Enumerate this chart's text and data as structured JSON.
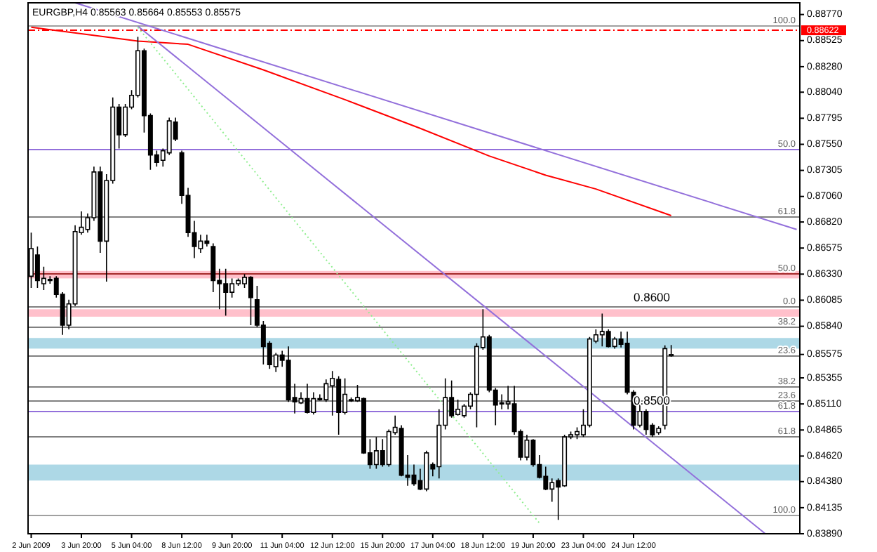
{
  "chart_data": {
    "type": "candlestick",
    "title": "EURGBP,H4  0.85563 0.85664 0.85553 0.85575",
    "categories": [
      "2 Jun 2009",
      null,
      null,
      null,
      null,
      null,
      null,
      null,
      "3 Jun 20:00",
      null,
      null,
      null,
      null,
      null,
      null,
      null,
      "5 Jun 04:00",
      null,
      null,
      null,
      null,
      null,
      null,
      null,
      "8 Jun 12:00",
      null,
      null,
      null,
      null,
      null,
      null,
      null,
      "9 Jun 20:00",
      null,
      null,
      null,
      null,
      null,
      null,
      null,
      "11 Jun 04:00",
      null,
      null,
      null,
      null,
      null,
      null,
      null,
      "12 Jun 12:00",
      null,
      null,
      null,
      null,
      null,
      null,
      null,
      "15 Jun 20:00",
      null,
      null,
      null,
      null,
      null,
      null,
      null,
      "17 Jun 04:00",
      null,
      null,
      null,
      null,
      null,
      null,
      null,
      "18 Jun 12:00",
      null,
      null,
      null,
      null,
      null,
      null,
      null,
      "19 Jun 20:00",
      null,
      null,
      null,
      null,
      null,
      null,
      null,
      "23 Jun 04:00",
      null,
      null,
      null,
      null,
      null,
      null,
      null,
      "24 Jun 12:00",
      null,
      null,
      null,
      null,
      null,
      null,
      null,
      null,
      null,
      null,
      null,
      null,
      null,
      null,
      null,
      null,
      null,
      null,
      null,
      null,
      null,
      null,
      null,
      null,
      null,
      null
    ],
    "ohlc": [
      [
        0.8631,
        0.8672,
        0.862,
        0.8657
      ],
      [
        0.8651,
        0.8659,
        0.862,
        0.8627
      ],
      [
        0.8624,
        0.864,
        0.8618,
        0.8629
      ],
      [
        0.8628,
        0.8631,
        0.8624,
        0.8627
      ],
      [
        0.8629,
        0.8631,
        0.8611,
        0.8614
      ],
      [
        0.8614,
        0.8616,
        0.8576,
        0.8585
      ],
      [
        0.8585,
        0.8609,
        0.8581,
        0.8605
      ],
      [
        0.8605,
        0.8679,
        0.8603,
        0.8673
      ],
      [
        0.8672,
        0.8692,
        0.867,
        0.8677
      ],
      [
        0.8675,
        0.869,
        0.8672,
        0.8686
      ],
      [
        0.8686,
        0.8734,
        0.8683,
        0.8729
      ],
      [
        0.8729,
        0.8734,
        0.8653,
        0.8664
      ],
      [
        0.8664,
        0.8727,
        0.8626,
        0.8721
      ],
      [
        0.8721,
        0.8799,
        0.8718,
        0.879
      ],
      [
        0.879,
        0.8793,
        0.8751,
        0.8764
      ],
      [
        0.8764,
        0.8793,
        0.8762,
        0.879
      ],
      [
        0.879,
        0.8806,
        0.8788,
        0.8801
      ],
      [
        0.8801,
        0.8856,
        0.8799,
        0.8843
      ],
      [
        0.8843,
        0.8845,
        0.8766,
        0.8782
      ],
      [
        0.8782,
        0.8784,
        0.8731,
        0.8745
      ],
      [
        0.8745,
        0.8749,
        0.8734,
        0.8738
      ],
      [
        0.874,
        0.8751,
        0.8734,
        0.8749
      ],
      [
        0.8747,
        0.878,
        0.8745,
        0.8777
      ],
      [
        0.8776,
        0.878,
        0.8758,
        0.876
      ],
      [
        0.8747,
        0.8749,
        0.8699,
        0.8707
      ],
      [
        0.8707,
        0.8714,
        0.8668,
        0.8672
      ],
      [
        0.8672,
        0.8683,
        0.8648,
        0.8659
      ],
      [
        0.8657,
        0.867,
        0.8653,
        0.8664
      ],
      [
        0.8664,
        0.867,
        0.8659,
        0.8662
      ],
      [
        0.8659,
        0.8662,
        0.8616,
        0.8627
      ],
      [
        0.8627,
        0.8638,
        0.86,
        0.8624
      ],
      [
        0.8624,
        0.8638,
        0.8594,
        0.8616
      ],
      [
        0.8616,
        0.8629,
        0.8611,
        0.8624
      ],
      [
        0.8624,
        0.8629,
        0.8622,
        0.8627
      ],
      [
        0.8624,
        0.8633,
        0.862,
        0.863
      ],
      [
        0.863,
        0.8631,
        0.8585,
        0.8611
      ],
      [
        0.8609,
        0.8622,
        0.8583,
        0.8585
      ],
      [
        0.8585,
        0.8589,
        0.8548,
        0.8565
      ],
      [
        0.8568,
        0.857,
        0.8544,
        0.8548
      ],
      [
        0.8546,
        0.8559,
        0.8541,
        0.8557
      ],
      [
        0.8557,
        0.8561,
        0.8546,
        0.8552
      ],
      [
        0.8552,
        0.8565,
        0.8513,
        0.8515
      ],
      [
        0.8517,
        0.853,
        0.8502,
        0.8513
      ],
      [
        0.8512,
        0.8522,
        0.8511,
        0.8516
      ],
      [
        0.8516,
        0.853,
        0.8502,
        0.8503
      ],
      [
        0.8503,
        0.8522,
        0.8501,
        0.8516
      ],
      [
        0.8515,
        0.852,
        0.8514,
        0.8516
      ],
      [
        0.8515,
        0.8534,
        0.8513,
        0.853
      ],
      [
        0.8528,
        0.8542,
        0.85,
        0.8535
      ],
      [
        0.8534,
        0.8537,
        0.8482,
        0.8503
      ],
      [
        0.8503,
        0.8535,
        0.8501,
        0.852
      ],
      [
        0.8514,
        0.8517,
        0.8513,
        0.8515
      ],
      [
        0.8514,
        0.8529,
        0.8513,
        0.8517
      ],
      [
        0.8516,
        0.8517,
        0.8464,
        0.8465
      ],
      [
        0.8465,
        0.8478,
        0.845,
        0.8454
      ],
      [
        0.8454,
        0.848,
        0.845,
        0.8467
      ],
      [
        0.8467,
        0.8478,
        0.8452,
        0.8454
      ],
      [
        0.8454,
        0.8487,
        0.8452,
        0.8485
      ],
      [
        0.8484,
        0.85,
        0.8482,
        0.8489
      ],
      [
        0.8488,
        0.8491,
        0.8443,
        0.8444
      ],
      [
        0.8444,
        0.8463,
        0.8434,
        0.8442
      ],
      [
        0.8444,
        0.8454,
        0.8434,
        0.8436
      ],
      [
        0.8439,
        0.845,
        0.843,
        0.8431
      ],
      [
        0.8431,
        0.8467,
        0.8429,
        0.8465
      ],
      [
        0.8454,
        0.8456,
        0.8443,
        0.845
      ],
      [
        0.8452,
        0.8506,
        0.8441,
        0.8491
      ],
      [
        0.8491,
        0.8535,
        0.8487,
        0.8517
      ],
      [
        0.8517,
        0.8533,
        0.8498,
        0.85
      ],
      [
        0.8501,
        0.8515,
        0.85,
        0.8506
      ],
      [
        0.85,
        0.8511,
        0.8498,
        0.8509
      ],
      [
        0.8509,
        0.8522,
        0.8506,
        0.852
      ],
      [
        0.852,
        0.8568,
        0.8489,
        0.8565
      ],
      [
        0.8564,
        0.86,
        0.8562,
        0.8574
      ],
      [
        0.8574,
        0.8576,
        0.8522,
        0.8524
      ],
      [
        0.8524,
        0.8526,
        0.8491,
        0.851
      ],
      [
        0.8511,
        0.852,
        0.8506,
        0.8512
      ],
      [
        0.8511,
        0.8528,
        0.8506,
        0.8513
      ],
      [
        0.8511,
        0.8528,
        0.8482,
        0.8485
      ],
      [
        0.8485,
        0.8487,
        0.8458,
        0.8461
      ],
      [
        0.8461,
        0.8482,
        0.8458,
        0.8477
      ],
      [
        0.8477,
        0.8478,
        0.8452,
        0.8454
      ],
      [
        0.8454,
        0.8463,
        0.8441,
        0.8442
      ],
      [
        0.8443,
        0.8452,
        0.843,
        0.8431
      ],
      [
        0.8431,
        0.8441,
        0.8419,
        0.8437
      ],
      [
        0.8439,
        0.8441,
        0.8402,
        0.8433
      ],
      [
        0.8434,
        0.8482,
        0.8433,
        0.848
      ],
      [
        0.848,
        0.8485,
        0.8478,
        0.8482
      ],
      [
        0.8482,
        0.8489,
        0.8478,
        0.8485
      ],
      [
        0.8482,
        0.8506,
        0.848,
        0.8491
      ],
      [
        0.8491,
        0.8574,
        0.8489,
        0.8572
      ],
      [
        0.857,
        0.8581,
        0.8568,
        0.8576
      ],
      [
        0.8576,
        0.8596,
        0.8565,
        0.8579
      ],
      [
        0.8579,
        0.8581,
        0.8564,
        0.8565
      ],
      [
        0.8565,
        0.8574,
        0.8563,
        0.8572
      ],
      [
        0.8572,
        0.8579,
        0.8564,
        0.8567
      ],
      [
        0.8568,
        0.8579,
        0.852,
        0.8522
      ],
      [
        0.8522,
        0.8524,
        0.8487,
        0.8491
      ],
      [
        0.8491,
        0.8516,
        0.8489,
        0.8504
      ],
      [
        0.8504,
        0.8506,
        0.8482,
        0.8487
      ],
      [
        0.8491,
        0.8493,
        0.848,
        0.8482
      ],
      [
        0.8484,
        0.849,
        0.8482,
        0.8488
      ],
      [
        0.8491,
        0.8566,
        0.8487,
        0.8563
      ],
      [
        0.85563,
        0.85664,
        0.85553,
        0.85575
      ],
      null,
      null,
      null,
      null,
      null,
      null,
      null,
      null,
      null,
      null,
      null,
      null,
      null,
      null,
      null,
      null,
      null,
      null,
      null,
      null
    ],
    "ylim": [
      0.8389,
      0.8888
    ],
    "yticks": [
      {
        "value": 0.8877,
        "label": "0.88770"
      },
      {
        "value": 0.88525,
        "label": "0.88525"
      },
      {
        "value": 0.8828,
        "label": "0.88280"
      },
      {
        "value": 0.8804,
        "label": "0.88040"
      },
      {
        "value": 0.87795,
        "label": "0.87795"
      },
      {
        "value": 0.8755,
        "label": "0.87550"
      },
      {
        "value": 0.87305,
        "label": "0.87305"
      },
      {
        "value": 0.8706,
        "label": "0.87060"
      },
      {
        "value": 0.8682,
        "label": "0.86820"
      },
      {
        "value": 0.86575,
        "label": "0.86575"
      },
      {
        "value": 0.8633,
        "label": "0.86330"
      },
      {
        "value": 0.86085,
        "label": "0.86085"
      },
      {
        "value": 0.8584,
        "label": "0.85840"
      },
      {
        "value": 0.85575,
        "label": "0.85575"
      },
      {
        "value": 0.85355,
        "label": "0.85355"
      },
      {
        "value": 0.8511,
        "label": "0.85110"
      },
      {
        "value": 0.84865,
        "label": "0.84865"
      },
      {
        "value": 0.8462,
        "label": "0.84620"
      },
      {
        "value": 0.8438,
        "label": "0.84380"
      },
      {
        "value": 0.84135,
        "label": "0.84135"
      },
      {
        "value": 0.8389,
        "label": "0.83890"
      }
    ],
    "series": [
      {
        "type": "line",
        "color": "#ff0000",
        "values": [
          0.8865,
          null,
          null,
          null,
          null,
          null,
          null,
          null,
          null,
          null,
          null,
          null,
          null,
          null,
          null,
          null,
          null,
          0.8852,
          null,
          null,
          null,
          null,
          null,
          null,
          null,
          0.8849,
          null,
          null,
          null,
          null,
          null,
          null,
          null,
          null,
          null,
          null,
          null,
          0.8825,
          null,
          null,
          null,
          null,
          null,
          null,
          null,
          null,
          null,
          null,
          null,
          null,
          0.8797,
          null,
          null,
          null,
          null,
          null,
          null,
          null,
          null,
          null,
          null,
          null,
          0.877,
          null,
          null,
          null,
          null,
          null,
          null,
          null,
          null,
          null,
          null,
          0.8744,
          null,
          null,
          null,
          null,
          null,
          null,
          null,
          null,
          0.8726,
          null,
          null,
          null,
          null,
          null,
          null,
          null,
          0.8713,
          null,
          null,
          null,
          null,
          null,
          null,
          null,
          null,
          null,
          null,
          null,
          0.8688,
          null,
          null,
          null,
          null,
          null,
          null,
          null,
          null,
          null,
          null,
          null,
          null,
          null,
          null,
          null,
          null,
          null,
          null,
          null,
          null
        ]
      },
      {
        "type": "line",
        "color": "#9370db",
        "values": [
          null,
          null,
          null,
          null,
          null,
          null,
          null,
          0.8888,
          null,
          null,
          null,
          null,
          null,
          null,
          null,
          null,
          null,
          null,
          null,
          null,
          null,
          null,
          null,
          null,
          null,
          null,
          null,
          null,
          null,
          null,
          null,
          null,
          null,
          null,
          null,
          null,
          null,
          null,
          null,
          null,
          null,
          null,
          null,
          null,
          null,
          null,
          null,
          null,
          null,
          null,
          null,
          null,
          null,
          null,
          null,
          null,
          null,
          null,
          null,
          null,
          null,
          null,
          null,
          null,
          null,
          null,
          null,
          null,
          null,
          null,
          null,
          null,
          null,
          null,
          null,
          null,
          null,
          null,
          null,
          null,
          null,
          null,
          null,
          null,
          null,
          null,
          null,
          null,
          null,
          null,
          null,
          null,
          null,
          null,
          null,
          null,
          null,
          null,
          null,
          null,
          null,
          null,
          null,
          null,
          null,
          null,
          null,
          null,
          null,
          null,
          null,
          null,
          null,
          null,
          null,
          null,
          null,
          null,
          null,
          null,
          null,
          null,
          0.8675
        ]
      },
      {
        "type": "line",
        "color": "#9370db",
        "values": [
          null,
          null,
          null,
          null,
          null,
          null,
          null,
          null,
          null,
          null,
          null,
          null,
          null,
          null,
          null,
          null,
          null,
          0.8866,
          null,
          null,
          null,
          null,
          null,
          null,
          null,
          null,
          null,
          null,
          null,
          null,
          null,
          null,
          null,
          null,
          null,
          null,
          null,
          null,
          null,
          null,
          null,
          null,
          null,
          null,
          null,
          null,
          null,
          null,
          null,
          null,
          null,
          null,
          null,
          null,
          null,
          null,
          null,
          null,
          null,
          null,
          null,
          null,
          null,
          null,
          null,
          null,
          null,
          null,
          null,
          null,
          null,
          null,
          null,
          null,
          null,
          null,
          null,
          null,
          null,
          null,
          null,
          null,
          null,
          null,
          null,
          null,
          null,
          null,
          null,
          null,
          null,
          null,
          null,
          null,
          null,
          null,
          null,
          null,
          null,
          null,
          null,
          null,
          null,
          null,
          null,
          null,
          null,
          null,
          null,
          null,
          null,
          null,
          null,
          null,
          null,
          null,
          null,
          0.8389,
          null,
          null,
          null,
          null,
          null
        ]
      },
      {
        "type": "line",
        "color": "#90ee90",
        "line_style": "dotted",
        "values": [
          null,
          null,
          null,
          null,
          null,
          null,
          null,
          null,
          null,
          null,
          null,
          null,
          null,
          null,
          null,
          null,
          null,
          0.8865,
          null,
          null,
          null,
          null,
          null,
          null,
          null,
          null,
          null,
          null,
          null,
          null,
          null,
          null,
          null,
          null,
          null,
          null,
          null,
          null,
          null,
          null,
          null,
          null,
          null,
          null,
          null,
          null,
          null,
          null,
          null,
          null,
          null,
          null,
          null,
          null,
          null,
          null,
          null,
          null,
          null,
          null,
          null,
          null,
          null,
          null,
          null,
          null,
          null,
          null,
          null,
          null,
          null,
          null,
          null,
          null,
          null,
          null,
          null,
          null,
          null,
          null,
          null,
          0.8399,
          null,
          null,
          null,
          null,
          null,
          null,
          null,
          null,
          null,
          null,
          null,
          null,
          null,
          null,
          null,
          null,
          null,
          null,
          null,
          null,
          null,
          null,
          null,
          null,
          null,
          null,
          null,
          null,
          null,
          null,
          null,
          null,
          null,
          null,
          null,
          null,
          null,
          null,
          null,
          null,
          null
        ]
      }
    ],
    "bands": [
      {
        "axis": "y",
        "from": 0.8629,
        "to": 0.8636,
        "color": "#ffc0cb"
      },
      {
        "axis": "y",
        "from": 0.8593,
        "to": 0.86,
        "color": "#ffc0cb"
      },
      {
        "axis": "y",
        "from": 0.8563,
        "to": 0.8573,
        "color": "#add8e6"
      },
      {
        "axis": "y",
        "from": 0.8439,
        "to": 0.8454,
        "color": "#add8e6"
      }
    ],
    "ref_lines": [
      {
        "axis": "y",
        "value": 0.88622,
        "label": "0.88622",
        "color": "#ff0000",
        "line_style": "dashed"
      },
      {
        "axis": "y",
        "value": 0.8866,
        "color": "#a0a0a0",
        "line_style": "solid"
      },
      {
        "axis": "y",
        "value": 0.875,
        "color": "#9370db",
        "line_style": "solid"
      },
      {
        "axis": "y",
        "value": 0.8687,
        "color": "#808080",
        "line_style": "solid"
      },
      {
        "axis": "y",
        "value": 0.8633,
        "color": "#a52a2a",
        "line_style": "solid"
      },
      {
        "axis": "y",
        "value": 0.8602,
        "color": "#808080",
        "line_style": "solid"
      },
      {
        "axis": "y",
        "value": 0.8583,
        "color": "#808080",
        "line_style": "solid"
      },
      {
        "axis": "y",
        "value": 0.8556,
        "color": "#808080",
        "line_style": "solid"
      },
      {
        "axis": "y",
        "value": 0.8527,
        "color": "#808080",
        "line_style": "solid"
      },
      {
        "axis": "y",
        "value": 0.8514,
        "color": "#808080",
        "line_style": "solid"
      },
      {
        "axis": "y",
        "value": 0.8504,
        "color": "#9370db",
        "line_style": "solid"
      },
      {
        "axis": "y",
        "value": 0.848,
        "color": "#808080",
        "line_style": "solid"
      },
      {
        "axis": "y",
        "value": 0.8406,
        "color": "#a0a0a0",
        "line_style": "solid"
      }
    ],
    "annotations": [
      {
        "text": "0.8600",
        "x": "24 Jun 12:00",
        "y": 0.8605
      },
      {
        "text": "0.8500",
        "x": "24 Jun 12:00",
        "y": 0.8508
      },
      {
        "text": "100.0",
        "y": 0.8866
      },
      {
        "text": "50.0",
        "y": 0.875
      },
      {
        "text": "61.8",
        "y": 0.8687
      },
      {
        "text": "50.0",
        "y": 0.8633
      },
      {
        "text": "0.0",
        "y": 0.8602
      },
      {
        "text": "38.2",
        "y": 0.8583
      },
      {
        "text": "23.6",
        "y": 0.8556
      },
      {
        "text": "38.2",
        "y": 0.8527
      },
      {
        "text": "23.6",
        "y": 0.8514
      },
      {
        "text": "61.8",
        "y": 0.8504
      },
      {
        "text": "61.8",
        "y": 0.848
      },
      {
        "text": "100.0",
        "y": 0.8406
      }
    ]
  }
}
